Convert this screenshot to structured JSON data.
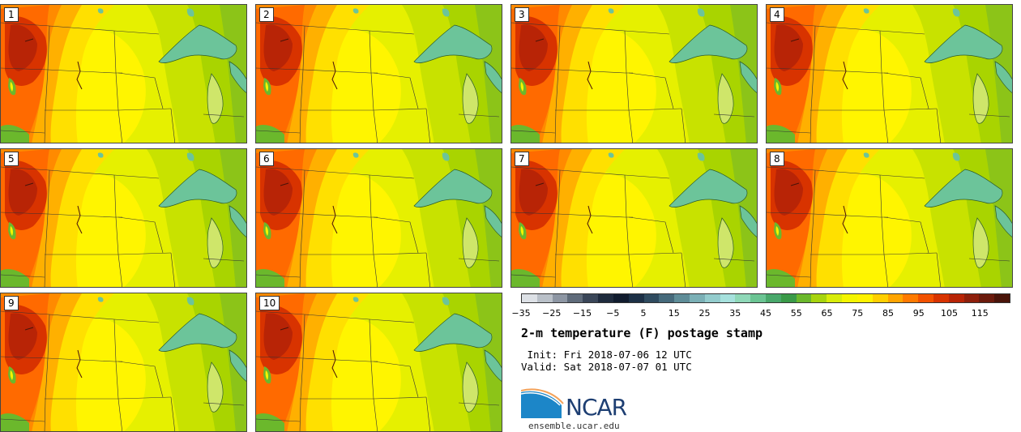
{
  "panels": [
    {
      "label": "1"
    },
    {
      "label": "2"
    },
    {
      "label": "3"
    },
    {
      "label": "4"
    },
    {
      "label": "5"
    },
    {
      "label": "6"
    },
    {
      "label": "7"
    },
    {
      "label": "8"
    },
    {
      "label": "9"
    },
    {
      "label": "10"
    }
  ],
  "colorbar": {
    "ticks": [
      "−35",
      "−25",
      "−15",
      "−5",
      "5",
      "15",
      "25",
      "35",
      "45",
      "55",
      "65",
      "75",
      "85",
      "95",
      "105",
      "115"
    ],
    "colors": [
      "#dde1e6",
      "#b9c0c8",
      "#8d96a3",
      "#5f6b7a",
      "#3a4658",
      "#1f2b3d",
      "#111c2e",
      "#1c3046",
      "#2f4b5f",
      "#466a7b",
      "#5f8d98",
      "#7bb0b6",
      "#93cccd",
      "#a6e1dd",
      "#8fd8b8",
      "#6bc493",
      "#49a86b",
      "#3a9a48",
      "#6bb82c",
      "#a7d40e",
      "#d8ec0a",
      "#f4f500",
      "#fff200",
      "#ffcf00",
      "#ffa400",
      "#ff7a00",
      "#f25100",
      "#d83300",
      "#b82406",
      "#8e1f0b",
      "#6b1a0c",
      "#4a1409"
    ]
  },
  "title": "2-m temperature (F) postage stamp",
  "init": " Init: Fri 2018-07-06 12 UTC",
  "valid": "Valid: Sat 2018-07-07 01 UTC",
  "logo": {
    "text": "NCAR",
    "url": "ensemble.ucar.edu",
    "color_blue": "#1d3e72",
    "color_sky": "#1c86c8"
  }
}
